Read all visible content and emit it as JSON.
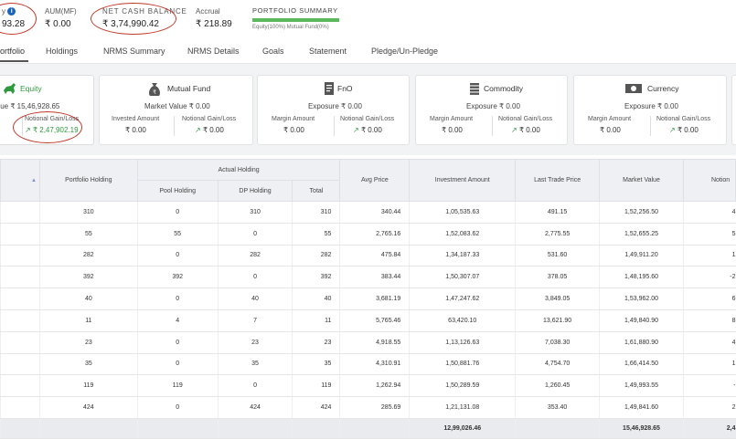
{
  "top": {
    "equity_label_tail": "y",
    "equity_value_tail": "93.28",
    "aum_label": "AUM(MF)",
    "aum_value": "₹ 0.00",
    "ncb_label": "NET CASH BALANCE",
    "ncb_value": "₹ 3,74,990.42",
    "accrual_label": "Accrual",
    "accrual_value": "₹ 218.89",
    "portfolio_summary_title": "PORTFOLIO SUMMARY",
    "portfolio_summary_legend": "Equity(100%)   Mutual Fund(0%)"
  },
  "tabs": [
    "ortfolio",
    "Holdings",
    "NRMS Summary",
    "NRMS Details",
    "Goals",
    "Statement",
    "Pledge/Un-Pledge"
  ],
  "cards": {
    "equity": {
      "name": "Equity",
      "main": "alue  ₹ 15,46,928.65",
      "sub_label": "Notional Gain/Loss",
      "sub_value": "₹ 2,47,902.19"
    },
    "mutual_fund": {
      "name": "Mutual Fund",
      "main": "Market Value  ₹ 0.00",
      "left_label": "Invested Amount",
      "left_value": "₹ 0.00",
      "right_label": "Notional Gain/Loss",
      "right_value": "₹ 0.00"
    },
    "fno": {
      "name": "FnO",
      "main": "Exposure  ₹ 0.00",
      "left_label": "Margin Amount",
      "left_value": "₹ 0.00",
      "right_label": "Notional Gain/Loss",
      "right_value": "₹ 0.00"
    },
    "commodity": {
      "name": "Commodity",
      "main": "Exposure  ₹ 0.00",
      "left_label": "Margin Amount",
      "left_value": "₹ 0.00",
      "right_label": "Notional Gain/Loss",
      "right_value": "₹ 0.00"
    },
    "currency": {
      "name": "Currency",
      "main": "Exposure  ₹ 0.00",
      "left_label": "Margin Amount",
      "left_value": "₹ 0.00",
      "right_label": "Notional Gain/Loss",
      "right_value": "₹ 0.00"
    }
  },
  "table": {
    "headers": {
      "portfolio_holding": "Portfolio Holding",
      "actual_holding": "Actual Holding",
      "pool_holding": "Pool Holding",
      "dp_holding": "DP Holding",
      "total": "Total",
      "avg_price": "Avg Price",
      "investment_amount": "Investment Amount",
      "last_trade_price": "Last Trade Price",
      "market_value": "Market Value",
      "notional": "Notion"
    },
    "rows": [
      [
        "310",
        "0",
        "310",
        "310",
        "340.44",
        "1,05,535.63",
        "491.15",
        "1,52,256.50",
        "4"
      ],
      [
        "55",
        "55",
        "0",
        "55",
        "2,765.16",
        "1,52,083.62",
        "2,775.55",
        "1,52,655.25",
        "5"
      ],
      [
        "282",
        "0",
        "282",
        "282",
        "475.84",
        "1,34,187.33",
        "531.60",
        "1,49,911.20",
        "1"
      ],
      [
        "392",
        "392",
        "0",
        "392",
        "383.44",
        "1,50,307.07",
        "378.05",
        "1,48,195.60",
        "-2"
      ],
      [
        "40",
        "0",
        "40",
        "40",
        "3,681.19",
        "1,47,247.62",
        "3,849.05",
        "1,53,962.00",
        "6"
      ],
      [
        "11",
        "4",
        "7",
        "11",
        "5,765.46",
        "63,420.10",
        "13,621.90",
        "1,49,840.90",
        "8"
      ],
      [
        "23",
        "0",
        "23",
        "23",
        "4,918.55",
        "1,13,126.63",
        "7,038.30",
        "1,61,880.90",
        "4"
      ],
      [
        "35",
        "0",
        "35",
        "35",
        "4,310.91",
        "1,50,881.76",
        "4,754.70",
        "1,66,414.50",
        "1"
      ],
      [
        "119",
        "119",
        "0",
        "119",
        "1,262.94",
        "1,50,289.59",
        "1,260.45",
        "1,49,993.55",
        "-"
      ],
      [
        "424",
        "0",
        "424",
        "424",
        "285.69",
        "1,21,131.08",
        "353.40",
        "1,49,841.60",
        "2"
      ]
    ],
    "total_investment": "12,99,026.46",
    "total_market_value": "15,46,928.65",
    "total_notional": "2,4"
  },
  "colors": {
    "gain_green": "#2e9a3e",
    "annotation_red": "#c0392b",
    "summary_bar": "#5cb85c"
  }
}
